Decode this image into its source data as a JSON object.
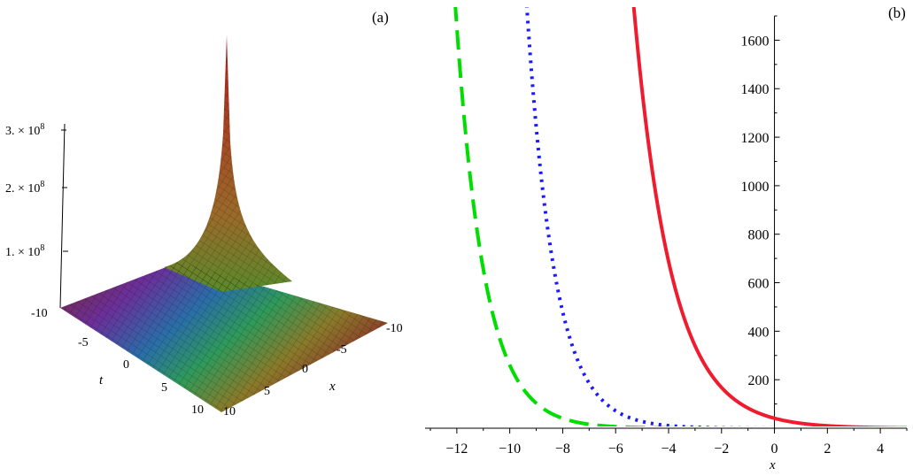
{
  "chart_data": [
    {
      "type": "surface3d",
      "panel_label": "(a)",
      "xlabel": "x",
      "tlabel": "t",
      "x_ticks": [
        "10",
        "5",
        "0",
        "-5",
        "-10"
      ],
      "t_ticks": [
        "-10",
        "-5",
        "0",
        "5",
        "10"
      ],
      "z_ticks": [
        {
          "mantissa": "1. × 10",
          "exp": "8",
          "value": 100000000
        },
        {
          "mantissa": "2. × 10",
          "exp": "8",
          "value": 200000000
        },
        {
          "mantissa": "3. × 10",
          "exp": "8",
          "value": 300000000
        }
      ],
      "zlim": [
        0,
        300000000
      ]
    },
    {
      "type": "line",
      "panel_label": "(b)",
      "xlabel": "x",
      "ylabel": "",
      "xlim": [
        -13.2,
        5
      ],
      "ylim": [
        0,
        1700
      ],
      "x_ticks": [
        -12,
        -10,
        -8,
        -6,
        -4,
        -2,
        0,
        2,
        4
      ],
      "x_tick_labels": [
        "−12",
        "−10",
        "−8",
        "−6",
        "−4",
        "−2",
        "0",
        "2",
        "4"
      ],
      "y_ticks": [
        200,
        400,
        600,
        800,
        1000,
        1200,
        1400,
        1600
      ],
      "y_tick_labels": [
        "200",
        "400",
        "600",
        "800",
        "1000",
        "1200",
        "1400",
        "1600"
      ],
      "series": [
        {
          "name": "green-dashed",
          "color": "#00dd00",
          "style": "dashed",
          "a": 0.025,
          "b": -0.925
        },
        {
          "name": "blue-dotted",
          "color": "#1a1aff",
          "style": "dotted",
          "a": 0.24,
          "b": -0.95
        },
        {
          "name": "red-solid",
          "color": "#ee1c2e",
          "style": "solid",
          "a": 41,
          "b": -0.705
        }
      ]
    }
  ]
}
